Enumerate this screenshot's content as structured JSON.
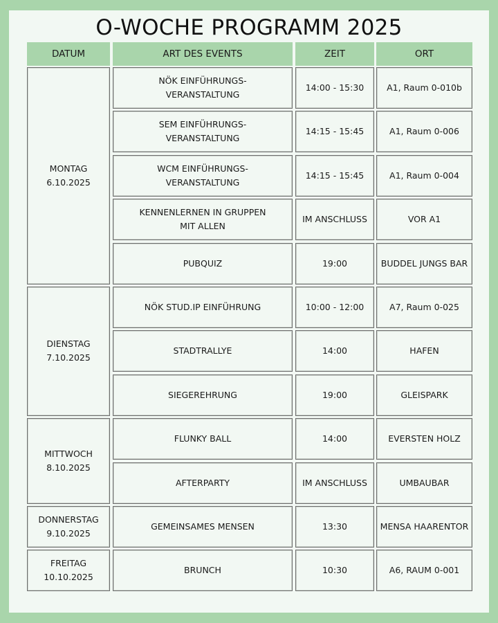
{
  "title": "O-WOCHE PROGRAMM 2025",
  "colors": {
    "frame": "#a9d5ab",
    "header": "#a9d5ab",
    "background": "#f2f8f3"
  },
  "headers": [
    "DATUM",
    "ART DES EVENTS",
    "ZEIT",
    "ORT"
  ],
  "days": [
    {
      "label": "MONTAG\n6.10.2025",
      "events": [
        {
          "event": "NÖK EINFÜHRUNGS-\nVERANSTALTUNG",
          "time": "14:00 - 15:30",
          "place": "A1, Raum 0-010b"
        },
        {
          "event": "SEM EINFÜHRUNGS-\nVERANSTALTUNG",
          "time": "14:15 - 15:45",
          "place": "A1, Raum 0-006"
        },
        {
          "event": "WCM EINFÜHRUNGS-\nVERANSTALTUNG",
          "time": "14:15 - 15:45",
          "place": "A1, Raum 0-004"
        },
        {
          "event": "KENNENLERNEN IN GRUPPEN\nMIT ALLEN",
          "time": "IM ANSCHLUSS",
          "place": "VOR A1"
        },
        {
          "event": "PUBQUIZ",
          "time": "19:00",
          "place": "BUDDEL JUNGS BAR"
        }
      ]
    },
    {
      "label": "DIENSTAG\n7.10.2025",
      "events": [
        {
          "event": "NÖK STUD.IP EINFÜHRUNG",
          "time": "10:00 - 12:00",
          "place": "A7, Raum 0-025"
        },
        {
          "event": "STADTRALLYE",
          "time": "14:00",
          "place": "HAFEN"
        },
        {
          "event": "SIEGEREHRUNG",
          "time": "19:00",
          "place": "GLEISPARK"
        }
      ]
    },
    {
      "label": "MITTWOCH\n8.10.2025",
      "events": [
        {
          "event": "FLUNKY BALL",
          "time": "14:00",
          "place": "EVERSTEN HOLZ"
        },
        {
          "event": "AFTERPARTY",
          "time": "IM ANSCHLUSS",
          "place": "UMBAUBAR"
        }
      ]
    },
    {
      "label": "DONNERSTAG\n9.10.2025",
      "events": [
        {
          "event": "GEMEINSAMES MENSEN",
          "time": "13:30",
          "place": "MENSA HAARENTOR"
        }
      ]
    },
    {
      "label": "FREITAG\n10.10.2025",
      "events": [
        {
          "event": "BRUNCH",
          "time": "10:30",
          "place": "A6, RAUM 0-001"
        }
      ]
    }
  ]
}
